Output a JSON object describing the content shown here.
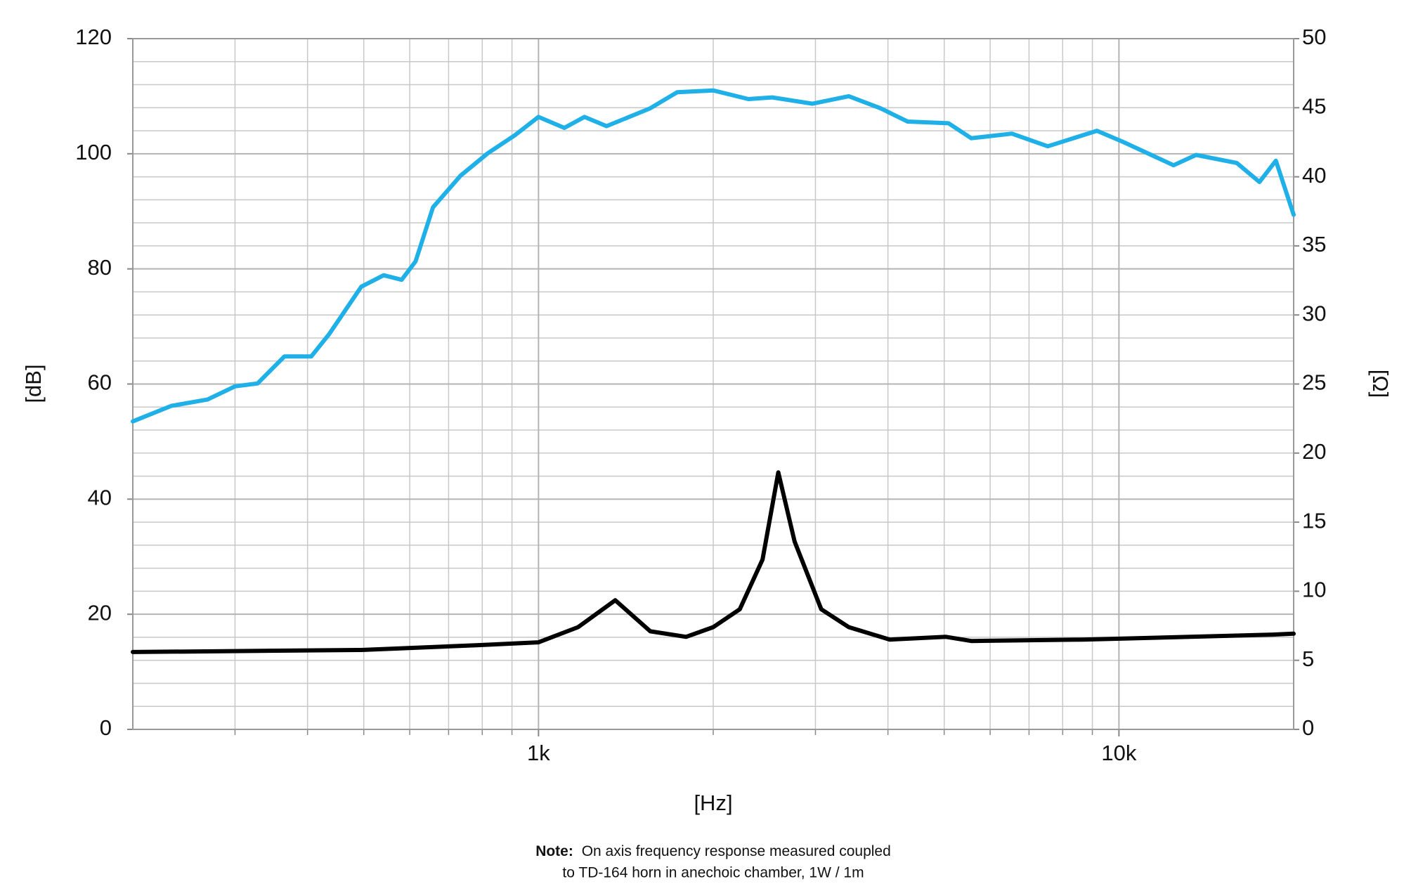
{
  "chart_data": {
    "type": "line",
    "x_label": "[Hz]",
    "y_label": "[dB]",
    "y2_label": "[Ω]",
    "xscale": "log",
    "xlim": [
      200,
      20000
    ],
    "xticks": [
      {
        "value": 1000,
        "label": "1k"
      },
      {
        "value": 10000,
        "label": "10k"
      }
    ],
    "ylim": [
      0,
      120
    ],
    "yticks": [
      0,
      20,
      40,
      60,
      80,
      100,
      120
    ],
    "y2lim": [
      0,
      50
    ],
    "y2ticks": [
      0,
      5,
      10,
      15,
      20,
      25,
      30,
      35,
      40,
      45,
      50
    ],
    "grid": true,
    "series": [
      {
        "color": "#1fb0e8",
        "x": [
          200,
          233,
          269,
          300,
          328,
          365,
          406,
          436,
          495,
          541,
          581,
          614,
          658,
          734,
          818,
          910,
          1000,
          1108,
          1200,
          1310,
          1558,
          1734,
          2000,
          2300,
          2527,
          2965,
          3424,
          3883,
          4325,
          5086,
          5568,
          6540,
          7540,
          9165,
          10200,
          12420,
          13580,
          15960,
          17460,
          18640,
          20000
        ],
        "values": [
          53.5,
          56.2,
          57.3,
          59.6,
          60.1,
          64.8,
          64.8,
          68.7,
          76.9,
          78.9,
          78.1,
          81.3,
          90.7,
          96.2,
          100.1,
          103.2,
          106.4,
          104.5,
          106.4,
          104.8,
          107.9,
          110.7,
          111,
          109.5,
          109.8,
          108.7,
          110,
          107.9,
          105.6,
          105.3,
          102.7,
          103.5,
          101.3,
          104,
          102,
          98,
          99.8,
          98.4,
          95.1,
          98.8,
          89.4
        ]
      },
      {
        "color": "#000000",
        "axis": "y2",
        "x": [
          200,
          495,
          788,
          1000,
          1170,
          1356,
          1558,
          1796,
          2000,
          2222,
          2432,
          2589,
          2762,
          3070,
          3424,
          4030,
          5035,
          5568,
          8660,
          12420,
          18420,
          20000
        ],
        "values": [
          5.6,
          5.75,
          6.1,
          6.3,
          7.4,
          9.35,
          7.1,
          6.7,
          7.4,
          8.7,
          12.3,
          18.6,
          13.6,
          8.7,
          7.4,
          6.5,
          6.7,
          6.4,
          6.5,
          6.67,
          6.86,
          6.93
        ]
      }
    ],
    "note": {
      "label": "Note:",
      "lines": [
        "On axis frequency response measured coupled",
        "to TD-164 horn in anechoic chamber, 1W / 1m"
      ]
    }
  }
}
